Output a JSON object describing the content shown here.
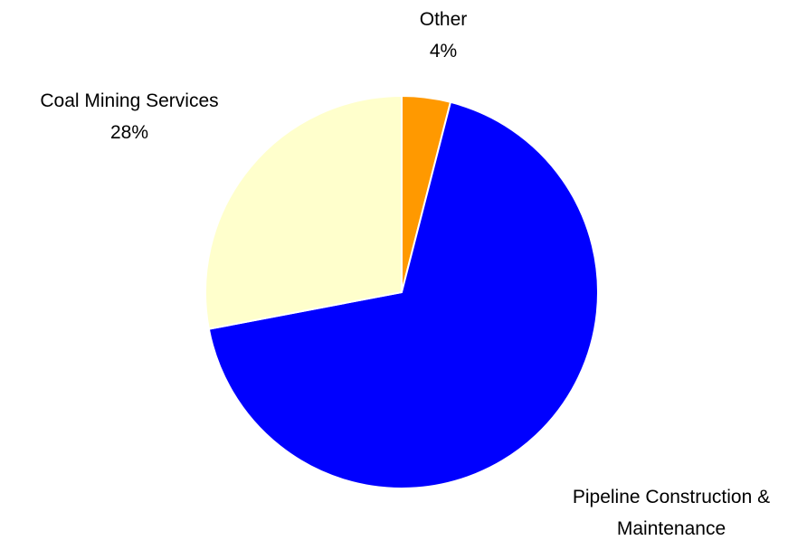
{
  "chart_data": {
    "type": "pie",
    "start_angle_deg": 0,
    "direction": "clockwise",
    "slices": [
      {
        "name": "Other",
        "label_lines": [
          "Other"
        ],
        "value": 4,
        "value_label": "4%",
        "color": "#ff9900",
        "label_position": "top"
      },
      {
        "name": "Pipeline Construction & Maintenance",
        "label_lines": [
          "Pipeline Construction &",
          "Maintenance"
        ],
        "value": 68,
        "value_label": "68%",
        "color": "#0000ff",
        "label_position": "bottom-right"
      },
      {
        "name": "Coal Mining Services",
        "label_lines": [
          "Coal Mining Services"
        ],
        "value": 28,
        "value_label": "28%",
        "color": "#ffffcc",
        "label_position": "top-left"
      }
    ],
    "slice_border_color": "#ffffff"
  }
}
